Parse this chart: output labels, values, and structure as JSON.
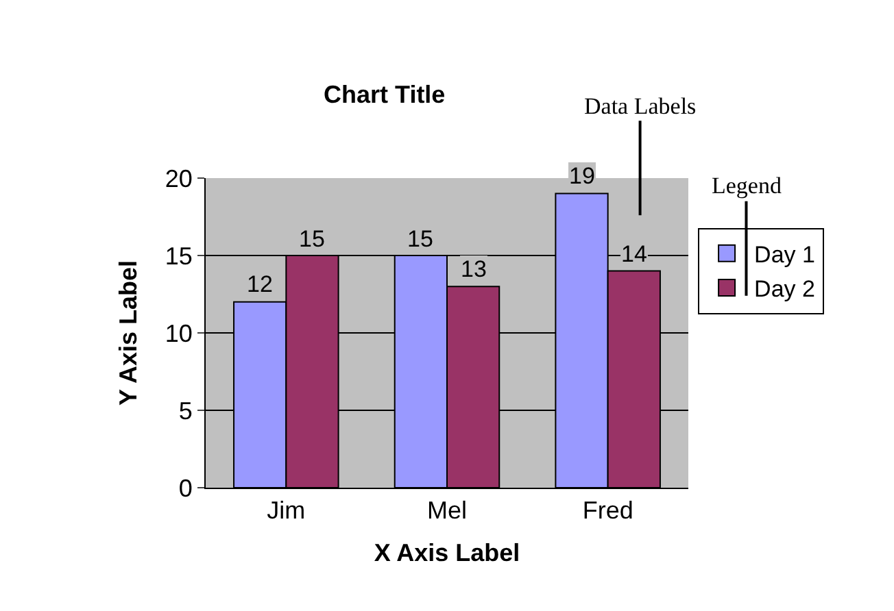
{
  "chart_data": {
    "type": "bar",
    "title": "Chart Title",
    "xlabel": "X Axis Label",
    "ylabel": "Y Axis Label",
    "categories": [
      "Jim",
      "Mel",
      "Fred"
    ],
    "series": [
      {
        "name": "Day 1",
        "color": "#9999ff",
        "values": [
          12,
          15,
          19
        ]
      },
      {
        "name": "Day 2",
        "color": "#993366",
        "values": [
          15,
          13,
          14
        ]
      }
    ],
    "ylim": [
      0,
      20
    ],
    "yticks": [
      0,
      5,
      10,
      15,
      20
    ],
    "grid": "y",
    "legend": "right",
    "data_labels": true,
    "annotations": [
      "Data Labels",
      "Legend"
    ]
  }
}
